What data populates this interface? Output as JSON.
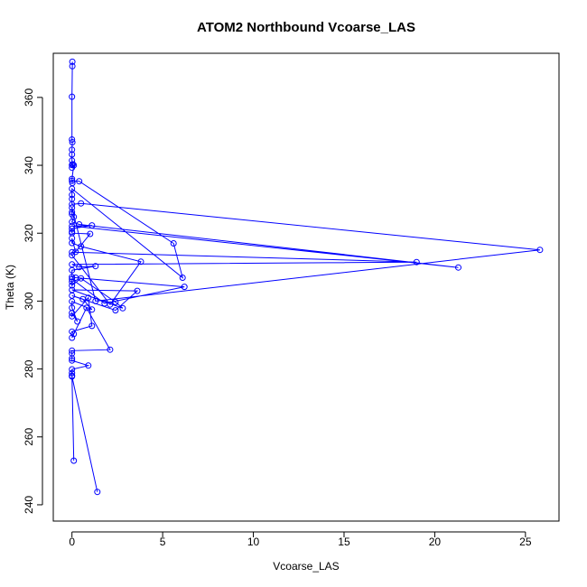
{
  "chart_data": {
    "type": "line",
    "title": "ATOM2 Northbound Vcoarse_LAS",
    "xlabel": "Vcoarse_LAS",
    "ylabel": "Theta (K)",
    "xlim": [
      -1.03,
      26.85
    ],
    "ylim": [
      235.2,
      373.0
    ],
    "x_ticks": [
      0,
      5,
      10,
      15,
      20,
      25
    ],
    "y_ticks": [
      240,
      260,
      280,
      300,
      320,
      340,
      360
    ],
    "grid": false,
    "legend": "none",
    "marker": "open-circle",
    "colors": {
      "series": "#0000ff",
      "frame": "#000000"
    },
    "series": [
      {
        "values": [
          [
            0.02,
            370.5
          ],
          [
            0.02,
            369.2
          ],
          [
            0.0,
            360.2
          ],
          [
            0.0,
            347.6
          ],
          [
            0.02,
            346.8
          ],
          [
            0.0,
            344.6
          ],
          [
            0.0,
            343.2
          ],
          [
            0.0,
            341.4
          ],
          [
            0.0,
            340.1
          ],
          [
            0.05,
            340.3
          ],
          [
            0.0,
            339.3
          ],
          [
            0.1,
            340.0
          ],
          [
            0.0,
            336.0
          ],
          [
            0.02,
            334.8
          ],
          [
            0.0,
            335.4
          ],
          [
            0.4,
            335.3
          ],
          [
            5.6,
            317.0
          ],
          [
            6.1,
            306.9
          ],
          [
            0.0,
            333.1
          ],
          [
            0.0,
            331.3
          ],
          [
            0.0,
            330.1
          ],
          [
            0.0,
            328.5
          ],
          [
            0.5,
            328.8
          ],
          [
            25.8,
            315.1
          ],
          [
            1.3,
            300.0
          ],
          [
            0.0,
            327.5
          ],
          [
            0.0,
            326.2
          ],
          [
            0.0,
            325.6
          ],
          [
            0.1,
            324.8
          ],
          [
            0.0,
            323.3
          ],
          [
            0.4,
            322.6
          ],
          [
            21.3,
            309.9
          ],
          [
            0.0,
            322.1
          ],
          [
            1.1,
            322.3
          ],
          [
            0.0,
            321.3
          ],
          [
            0.0,
            320.4
          ],
          [
            0.0,
            320.0
          ],
          [
            1.0,
            319.8
          ],
          [
            0.2,
            314.5
          ],
          [
            0.0,
            318.5
          ],
          [
            0.0,
            317.1
          ],
          [
            0.5,
            316.1
          ],
          [
            3.8,
            311.6
          ],
          [
            2.1,
            299.0
          ],
          [
            0.0,
            313.5
          ],
          [
            0.0,
            314.4
          ],
          [
            19.0,
            311.5
          ],
          [
            0.0,
            310.8
          ],
          [
            0.4,
            310.0
          ],
          [
            1.3,
            310.3
          ],
          [
            0.0,
            309.1
          ],
          [
            0.0,
            307.1
          ],
          [
            0.2,
            306.9
          ],
          [
            6.2,
            304.2
          ],
          [
            1.8,
            299.3
          ],
          [
            0.0,
            306.5
          ],
          [
            0.0,
            305.7
          ],
          [
            0.0,
            304.6
          ],
          [
            0.5,
            306.7
          ],
          [
            2.4,
            299.7
          ],
          [
            2.8,
            297.9
          ],
          [
            0.0,
            303.3
          ],
          [
            3.6,
            303.0
          ],
          [
            2.4,
            297.3
          ],
          [
            0.0,
            301.6
          ],
          [
            0.6,
            300.6
          ],
          [
            1.1,
            297.5
          ],
          [
            0.0,
            299.9
          ],
          [
            0.0,
            298.0
          ],
          [
            0.3,
            294.0
          ],
          [
            0.0,
            296.5
          ],
          [
            0.0,
            295.5
          ],
          [
            0.9,
            301.0
          ],
          [
            1.1,
            292.7
          ],
          [
            0.0,
            291.0
          ],
          [
            0.1,
            290.3
          ],
          [
            0.0,
            289.2
          ],
          [
            0.8,
            298.0
          ],
          [
            2.1,
            285.7
          ],
          [
            0.0,
            285.4
          ],
          [
            0.0,
            284.6
          ],
          [
            0.0,
            283.1
          ],
          [
            0.0,
            282.5
          ],
          [
            0.9,
            281.0
          ],
          [
            0.0,
            279.9
          ],
          [
            0.0,
            278.8
          ],
          [
            0.0,
            278.0
          ],
          [
            0.1,
            253.0
          ],
          [
            0.0,
            277.8
          ],
          [
            1.4,
            243.8
          ]
        ]
      }
    ]
  }
}
